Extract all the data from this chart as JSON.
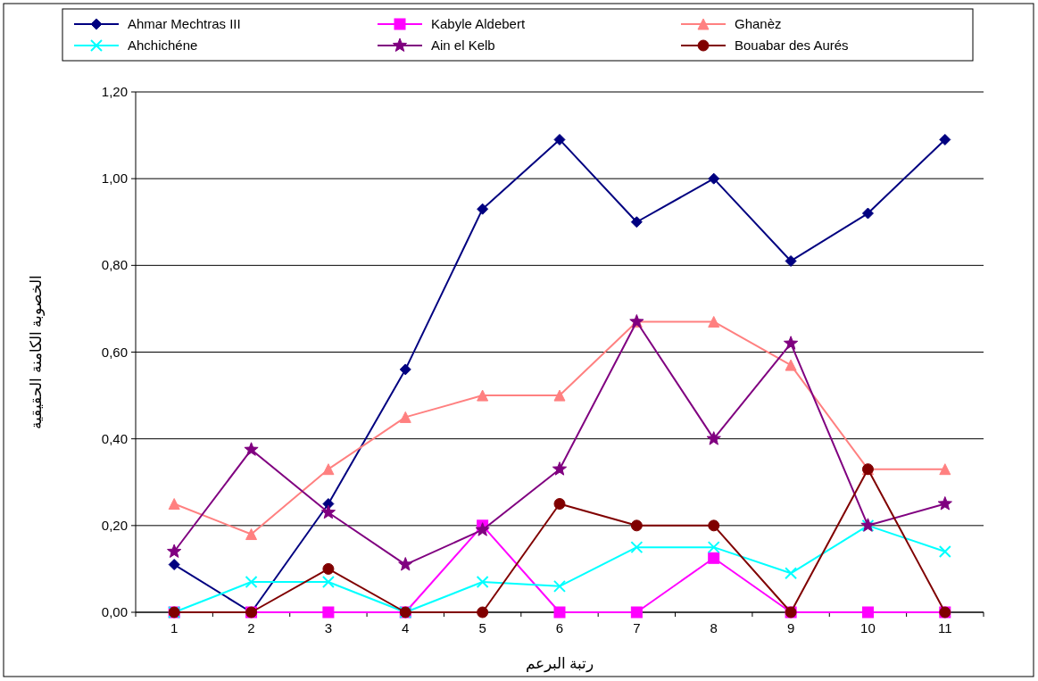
{
  "chart_data": {
    "type": "line",
    "xlabel": "رتبة البرعم",
    "ylabel": "الخصوبة الكامنة الحقيقية",
    "categories": [
      "1",
      "2",
      "3",
      "4",
      "5",
      "6",
      "7",
      "8",
      "9",
      "10",
      "11"
    ],
    "ylim": [
      0,
      1.2
    ],
    "yticks": [
      {
        "value": 0,
        "label": "0,00"
      },
      {
        "value": 0.2,
        "label": "0,20"
      },
      {
        "value": 0.4,
        "label": "0,40"
      },
      {
        "value": 0.6,
        "label": "0,60"
      },
      {
        "value": 0.8,
        "label": "0,80"
      },
      {
        "value": 1.0,
        "label": "1,00"
      },
      {
        "value": 1.2,
        "label": "1,20"
      }
    ],
    "grid": "y",
    "legend": "top",
    "line_style": "solid",
    "series": [
      {
        "name": "Ahmar Mechtras III",
        "color": "#000080",
        "marker": "diamond",
        "values": [
          0.11,
          0,
          0.25,
          0.56,
          0.93,
          1.09,
          0.9,
          1.0,
          0.81,
          0.92,
          1.09
        ]
      },
      {
        "name": "Kabyle Aldebert",
        "color": "#ff00ff",
        "marker": "square",
        "values": [
          0,
          0,
          0,
          0,
          0.2,
          0,
          0,
          0.125,
          0,
          0,
          0
        ]
      },
      {
        "name": "Ghanèz",
        "color": "#ff8080",
        "marker": "triangle",
        "values": [
          0.25,
          0.18,
          0.33,
          0.45,
          0.5,
          0.5,
          0.67,
          0.67,
          0.57,
          0.33,
          0.33
        ]
      },
      {
        "name": "Ahchichéne",
        "color": "#00ffff",
        "marker": "cross",
        "values": [
          0,
          0.07,
          0.07,
          0,
          0.07,
          0.06,
          0.15,
          0.15,
          0.09,
          0.2,
          0.14
        ]
      },
      {
        "name": "Ain el Kelb",
        "color": "#800080",
        "marker": "star",
        "values": [
          0.14,
          0.375,
          0.23,
          0.11,
          0.19,
          0.33,
          0.67,
          0.4,
          0.62,
          0.2,
          0.25
        ]
      },
      {
        "name": "Bouabar des Aurés",
        "color": "#800000",
        "marker": "circle",
        "values": [
          0,
          0,
          0.1,
          0,
          0,
          0.25,
          0.2,
          0.2,
          0,
          0.33,
          0
        ]
      }
    ]
  }
}
